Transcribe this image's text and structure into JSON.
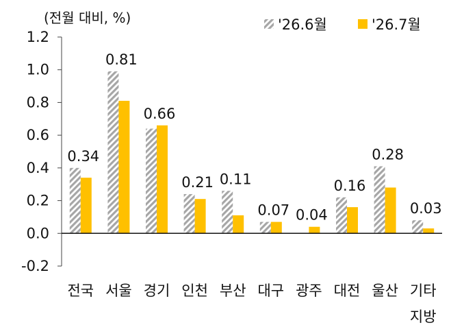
{
  "chart_data": {
    "type": "bar",
    "unit_label": "(전월 대비, %)",
    "categories": [
      "전국",
      "서울",
      "경기",
      "인천",
      "부산",
      "대구",
      "광주",
      "대전",
      "울산",
      "기타"
    ],
    "category_sublabels": [
      "",
      "",
      "",
      "",
      "",
      "",
      "",
      "",
      "",
      "지방"
    ],
    "series": [
      {
        "name": "'26.6월",
        "values": [
          0.4,
          0.99,
          0.64,
          0.24,
          0.26,
          0.07,
          0.0,
          0.22,
          0.41,
          0.08
        ],
        "pattern": "diagonal-hatch",
        "color": "#a6a6a6"
      },
      {
        "name": "'26.7월",
        "values": [
          0.34,
          0.81,
          0.66,
          0.21,
          0.11,
          0.07,
          0.04,
          0.16,
          0.28,
          0.03
        ],
        "data_labels": [
          "0.34",
          "0.81",
          "0.66",
          "0.21",
          "0.11",
          "0.07",
          "0.04",
          "0.16",
          "0.28",
          "0.03"
        ],
        "color": "#ffc000"
      }
    ],
    "y_ticks": [
      "-0.2",
      "0.0",
      "0.2",
      "0.4",
      "0.6",
      "0.8",
      "1.0",
      "1.2"
    ],
    "ylim": [
      -0.2,
      1.2
    ],
    "grid": false,
    "legend_position": "top-right"
  }
}
